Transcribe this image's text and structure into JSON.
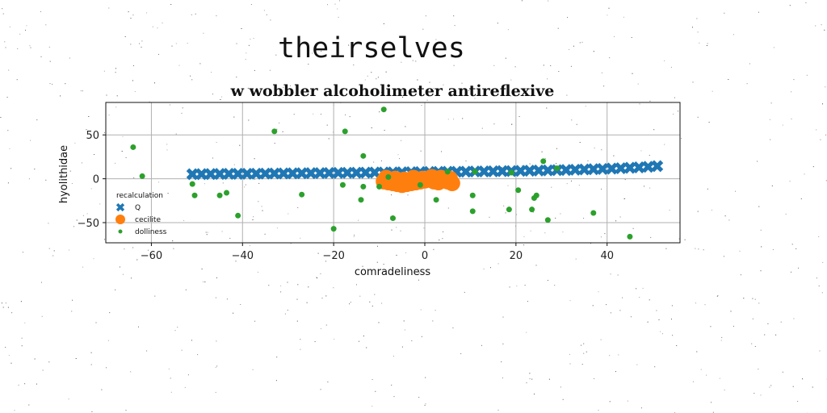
{
  "heading": "theirselves",
  "colors": {
    "Q": "#1f77b4",
    "cecilite": "#ff7f0e",
    "dolliness": "#2ca02c",
    "grid": "#b0b0b0"
  },
  "chart_data": {
    "type": "scatter",
    "title": "w wobbler alcoholimeter antireflexive",
    "xlabel": "comradeliness",
    "ylabel": "hyolithidae",
    "xlim": [
      -70,
      56
    ],
    "ylim": [
      -73,
      87
    ],
    "xticks": [
      -60,
      -40,
      -20,
      0,
      20,
      40
    ],
    "yticks": [
      -50,
      0,
      50
    ],
    "grid": true,
    "legend": {
      "title": "recalculation",
      "placement": "center-left"
    },
    "series": [
      {
        "name": "Q",
        "marker": "x",
        "color": "#1f77b4",
        "x": [
          -51,
          -49,
          -47,
          -45,
          -43,
          -41,
          -39,
          -37,
          -35,
          -33,
          -31,
          -29,
          -27,
          -25,
          -23,
          -21,
          -19,
          -17,
          -15,
          -13,
          -11,
          -9,
          -7,
          -5,
          -3,
          -1,
          1,
          3,
          5,
          7,
          9,
          11,
          13,
          15,
          17,
          19,
          21,
          23,
          25,
          27,
          29,
          31,
          33,
          35,
          37,
          39,
          41,
          43,
          45,
          47,
          49,
          51
        ],
        "y": [
          5.2,
          5.3,
          5.4,
          5.5,
          5.6,
          5.6,
          5.7,
          5.8,
          5.9,
          6.0,
          6.1,
          6.2,
          6.3,
          6.4,
          6.5,
          6.6,
          6.7,
          6.8,
          6.9,
          7.0,
          7.1,
          7.2,
          7.3,
          7.4,
          7.5,
          7.6,
          7.7,
          7.8,
          7.9,
          8.0,
          8.1,
          8.3,
          8.4,
          8.5,
          8.7,
          8.8,
          9.0,
          9.2,
          9.4,
          9.6,
          9.8,
          10.0,
          10.3,
          10.6,
          10.9,
          11.2,
          11.6,
          12.0,
          12.5,
          13.0,
          13.6,
          14.4
        ]
      },
      {
        "name": "cecilite",
        "marker": "o",
        "color": "#ff7f0e",
        "x": [
          -9,
          -8,
          -7,
          -6,
          -5,
          -4,
          -3,
          -2,
          -1,
          0,
          1,
          2,
          3,
          4,
          5,
          6,
          -8.5,
          -6.5,
          -4.5,
          -2.5,
          -0.5,
          1.5,
          3.5,
          5.5
        ],
        "y": [
          -3,
          -4,
          -5,
          -6,
          -7,
          -6,
          -5,
          -4,
          -3,
          -2,
          -1,
          -3,
          -4,
          -2,
          -3,
          -5,
          1,
          0,
          -1,
          1,
          0,
          2,
          1,
          0
        ]
      },
      {
        "name": "dolliness",
        "marker": "o",
        "color": "#2ca02c",
        "x": [
          -64,
          -62,
          -51,
          -50.5,
          -45,
          -43.5,
          -41,
          -33,
          -27,
          -20,
          -18,
          -17.5,
          -14,
          -13.5,
          -13.5,
          -10,
          -9,
          -8,
          -7,
          -1,
          2.5,
          5,
          10.5,
          10.5,
          11,
          18.5,
          19,
          20.5,
          23.5,
          24,
          24.5,
          26,
          27,
          29,
          37,
          45
        ],
        "y": [
          36,
          3,
          -6,
          -19,
          -19,
          -16,
          -42,
          54,
          -18,
          -57,
          -7,
          54,
          -24,
          -9,
          26,
          -9,
          79,
          2,
          -45,
          -7,
          -24,
          8,
          -19,
          -37,
          8,
          -35,
          7,
          -13,
          -35,
          -22,
          -19,
          20,
          -47,
          12,
          -39,
          -66
        ]
      }
    ]
  }
}
